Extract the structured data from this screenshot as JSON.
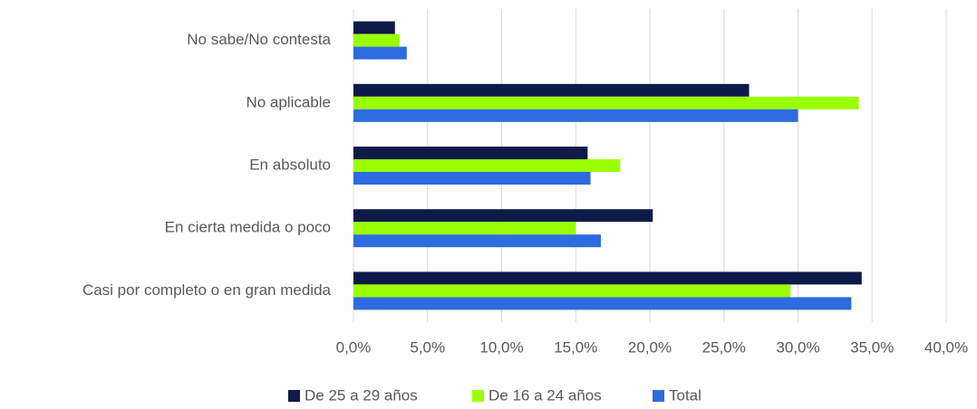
{
  "chart_data": {
    "type": "bar",
    "orientation": "horizontal",
    "categories": [
      "No sabe/No contesta",
      "No aplicable",
      "En absoluto",
      "En cierta medida o poco",
      "Casi por completo o en gran medida"
    ],
    "series": [
      {
        "name": "De 25 a 29 años",
        "color": "#0e1a48",
        "values": [
          2.8,
          26.7,
          15.8,
          20.2,
          34.3
        ]
      },
      {
        "name": "De 16 a 24 años",
        "color": "#99ff00",
        "values": [
          3.1,
          34.1,
          18.0,
          15.0,
          29.5
        ]
      },
      {
        "name": "Total",
        "color": "#2e6be0",
        "values": [
          3.6,
          30.0,
          16.0,
          16.7,
          33.6
        ]
      }
    ],
    "xlim": [
      0,
      40
    ],
    "xticks": [
      {
        "value": 0,
        "label": "0,0%"
      },
      {
        "value": 5,
        "label": "5,0%"
      },
      {
        "value": 10,
        "label": "10,0%"
      },
      {
        "value": 15,
        "label": "15,0%"
      },
      {
        "value": 20,
        "label": "20,0%"
      },
      {
        "value": 25,
        "label": "25,0%"
      },
      {
        "value": 30,
        "label": "30,0%"
      },
      {
        "value": 35,
        "label": "35,0%"
      },
      {
        "value": 40,
        "label": "40,0%"
      }
    ],
    "grid": true,
    "legend": "bottom"
  }
}
